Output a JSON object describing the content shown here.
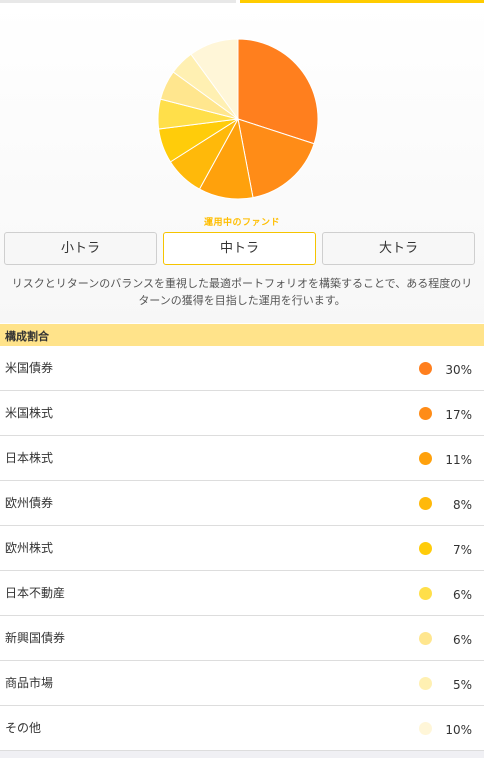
{
  "hero": {
    "current_fund_label": "運用中のファンド",
    "fund_buttons": [
      {
        "label": "小トラ",
        "active": false
      },
      {
        "label": "中トラ",
        "active": true
      },
      {
        "label": "大トラ",
        "active": false
      }
    ],
    "description_lines": [
      "リスクとリターンのバランスを重視した最適ポートフォリオを構築することで、ある程度のリ",
      "ターンの獲得を目指した運用を行います。"
    ]
  },
  "allocation": {
    "header": "構成割合",
    "items": [
      {
        "name": "米国債券",
        "value": 30,
        "percent_label": "30%",
        "color": "#ff7f1e"
      },
      {
        "name": "米国株式",
        "value": 17,
        "percent_label": "17%",
        "color": "#ff8c17"
      },
      {
        "name": "日本株式",
        "value": 11,
        "percent_label": "11%",
        "color": "#ffa10c"
      },
      {
        "name": "欧州債券",
        "value": 8,
        "percent_label": "8%",
        "color": "#ffb90a"
      },
      {
        "name": "欧州株式",
        "value": 7,
        "percent_label": "7%",
        "color": "#ffcc0a"
      },
      {
        "name": "日本不動産",
        "value": 6,
        "percent_label": "6%",
        "color": "#ffdf4a"
      },
      {
        "name": "新興国債券",
        "value": 6,
        "percent_label": "6%",
        "color": "#ffe68e"
      },
      {
        "name": "商品市場",
        "value": 5,
        "percent_label": "5%",
        "color": "#fff0b2"
      },
      {
        "name": "その他",
        "value": 10,
        "percent_label": "10%",
        "color": "#fff6d8"
      }
    ]
  },
  "chart_data": {
    "type": "pie",
    "categories": [
      "米国債券",
      "米国株式",
      "日本株式",
      "欧州債券",
      "欧州株式",
      "日本不動産",
      "新興国債券",
      "商品市場",
      "その他"
    ],
    "values": [
      30,
      17,
      11,
      8,
      7,
      6,
      6,
      5,
      10
    ],
    "colors": [
      "#ff7f1e",
      "#ff8c17",
      "#ffa10c",
      "#ffb90a",
      "#ffcc0a",
      "#ffdf4a",
      "#ffe68e",
      "#fff0b2",
      "#fff6d8"
    ],
    "title": "",
    "legend": "none"
  }
}
